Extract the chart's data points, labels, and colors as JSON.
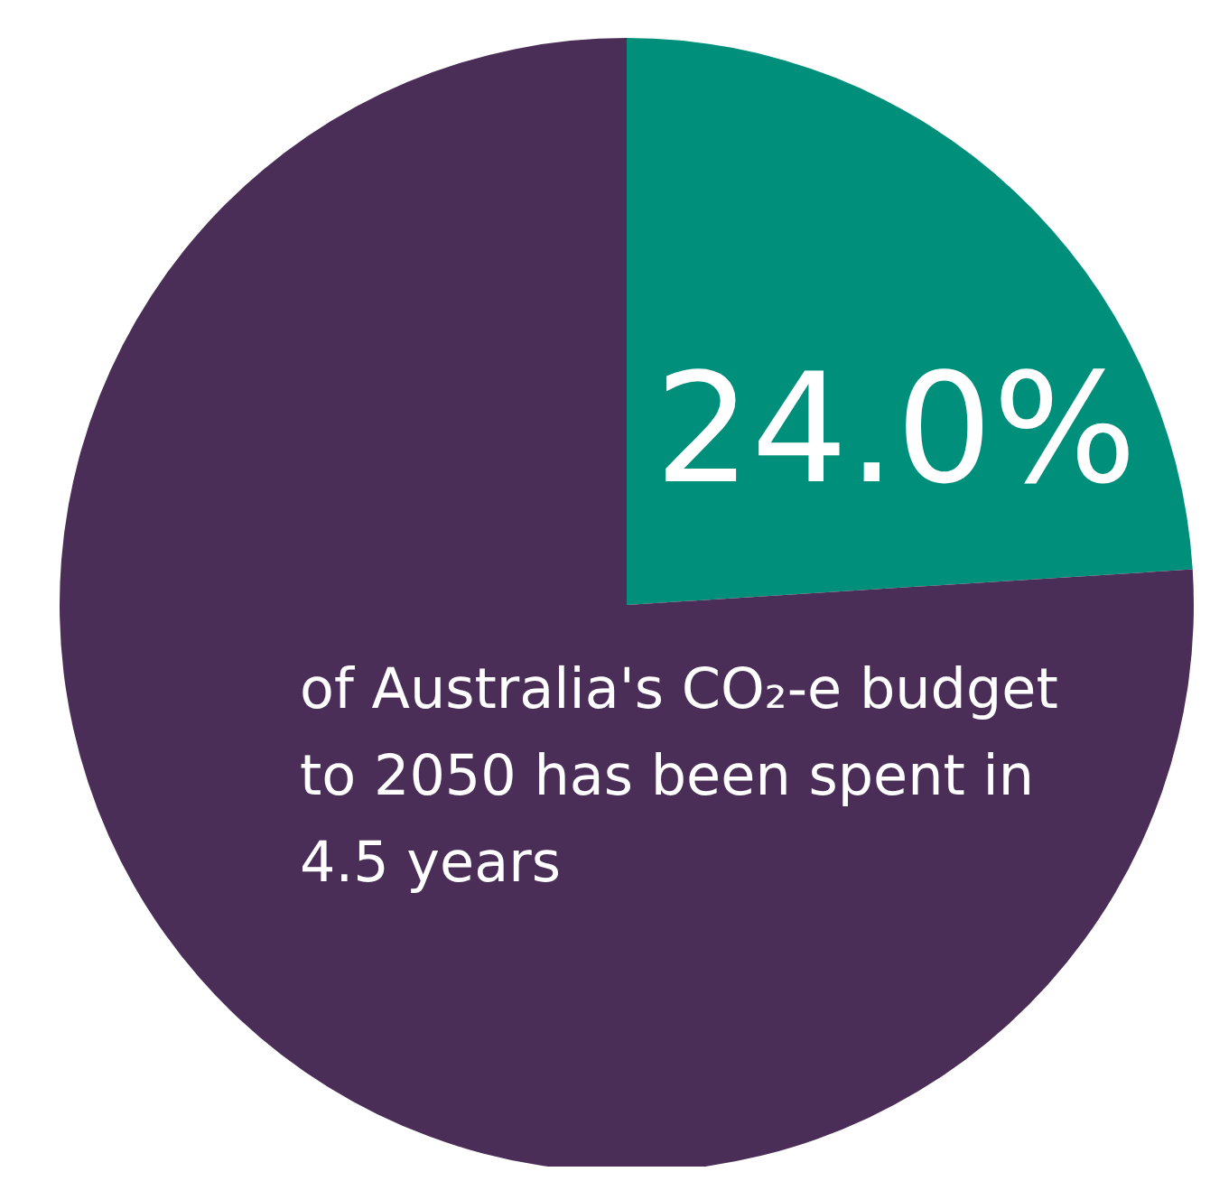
{
  "chart_data": {
    "type": "pie",
    "categories": [
      null,
      null
    ],
    "values": [
      24.0,
      76.0
    ],
    "colors": [
      "#008f7a",
      "#4b2e58"
    ],
    "value_labels": [
      "24.0%",
      null
    ],
    "annotations": [
      "of Australia's CO₂-e budget to 2050 has been spent in 4.5 years"
    ]
  }
}
